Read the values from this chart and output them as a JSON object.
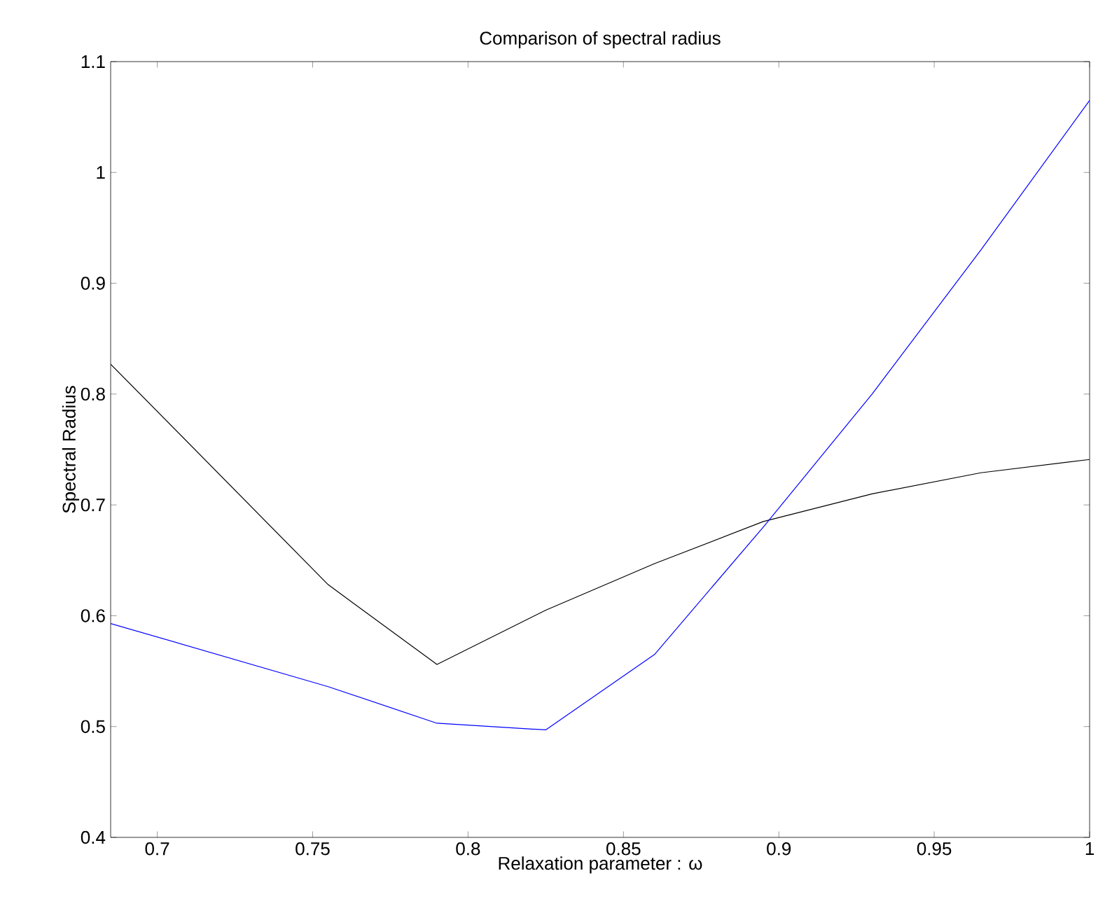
{
  "chart_data": {
    "type": "line",
    "title": "Comparison of spectral radius",
    "xlabel": "Relaxation parameter : ω",
    "ylabel": "Spectral Radius",
    "x": [
      0.685,
      0.755,
      0.79,
      0.825,
      0.86,
      0.895,
      0.93,
      0.965,
      1.0
    ],
    "series": [
      {
        "color": "#000000",
        "values": [
          0.827,
          0.628,
          0.556,
          0.605,
          0.647,
          0.685,
          0.71,
          0.729,
          0.741
        ]
      },
      {
        "color": "#0000ff",
        "values": [
          0.593,
          0.536,
          0.503,
          0.497,
          0.565,
          0.68,
          0.8,
          0.93,
          1.065
        ]
      }
    ],
    "xlim": [
      0.685,
      1.0
    ],
    "ylim": [
      0.4,
      1.1
    ],
    "xticks": [
      0.7,
      0.75,
      0.8,
      0.85,
      0.9,
      0.95,
      1
    ],
    "yticks": [
      0.4,
      0.5,
      0.6,
      0.7,
      0.8,
      0.9,
      1,
      1.1
    ],
    "grid": false,
    "marker": "none",
    "line_style": "solid"
  }
}
